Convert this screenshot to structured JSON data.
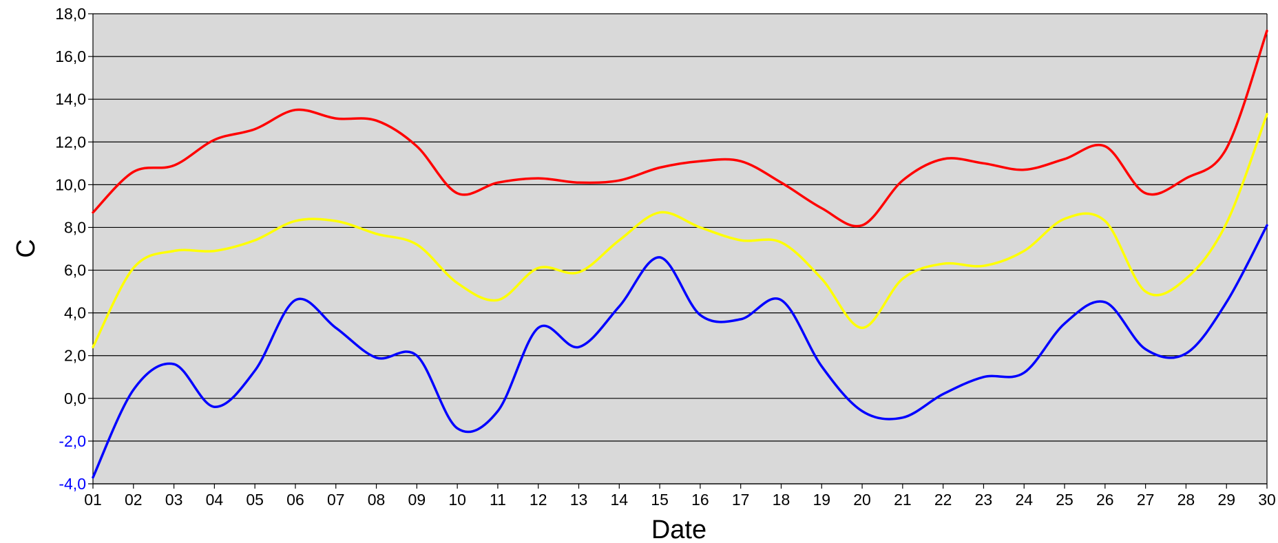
{
  "chart_data": {
    "type": "line",
    "xlabel": "Date",
    "ylabel": "C",
    "ylim": [
      -4,
      18
    ],
    "y_ticks": [
      -4,
      -2,
      0,
      2,
      4,
      6,
      8,
      10,
      12,
      14,
      16,
      18
    ],
    "y_tick_labels": [
      "-4,0",
      "-2,0",
      "0,0",
      "2,0",
      "4,0",
      "6,0",
      "8,0",
      "10,0",
      "12,0",
      "14,0",
      "16,0",
      "18,0"
    ],
    "negative_tick_color": "#0000ff",
    "x": [
      "01",
      "02",
      "03",
      "04",
      "05",
      "06",
      "07",
      "08",
      "09",
      "10",
      "11",
      "12",
      "13",
      "14",
      "15",
      "16",
      "17",
      "18",
      "19",
      "20",
      "21",
      "22",
      "23",
      "24",
      "25",
      "26",
      "27",
      "28",
      "29",
      "30"
    ],
    "plot_background": "#d9d9d9",
    "grid": true,
    "legend": "none",
    "series": [
      {
        "color": "#ff0000",
        "values": [
          8.7,
          10.6,
          10.9,
          12.1,
          12.6,
          13.5,
          13.1,
          13.0,
          11.8,
          9.6,
          10.1,
          10.3,
          10.1,
          10.2,
          10.8,
          11.1,
          11.1,
          10.1,
          8.9,
          8.1,
          10.2,
          11.2,
          11.0,
          10.7,
          11.2,
          11.8,
          9.6,
          10.3,
          11.7,
          17.2
        ]
      },
      {
        "color": "#ffff00",
        "values": [
          2.4,
          6.1,
          6.9,
          6.9,
          7.4,
          8.3,
          8.3,
          7.7,
          7.2,
          5.4,
          4.6,
          6.1,
          5.9,
          7.4,
          8.7,
          8.0,
          7.4,
          7.3,
          5.6,
          3.3,
          5.6,
          6.3,
          6.2,
          6.9,
          8.4,
          8.3,
          5.0,
          5.6,
          8.2,
          13.3
        ]
      },
      {
        "color": "#0000ff",
        "values": [
          -3.7,
          0.4,
          1.6,
          -0.4,
          1.3,
          4.6,
          3.3,
          1.9,
          2.0,
          -1.4,
          -0.6,
          3.3,
          2.4,
          4.3,
          6.6,
          3.9,
          3.7,
          4.6,
          1.5,
          -0.6,
          -0.9,
          0.2,
          1.0,
          1.2,
          3.5,
          4.5,
          2.3,
          2.1,
          4.5,
          8.1
        ]
      }
    ]
  }
}
